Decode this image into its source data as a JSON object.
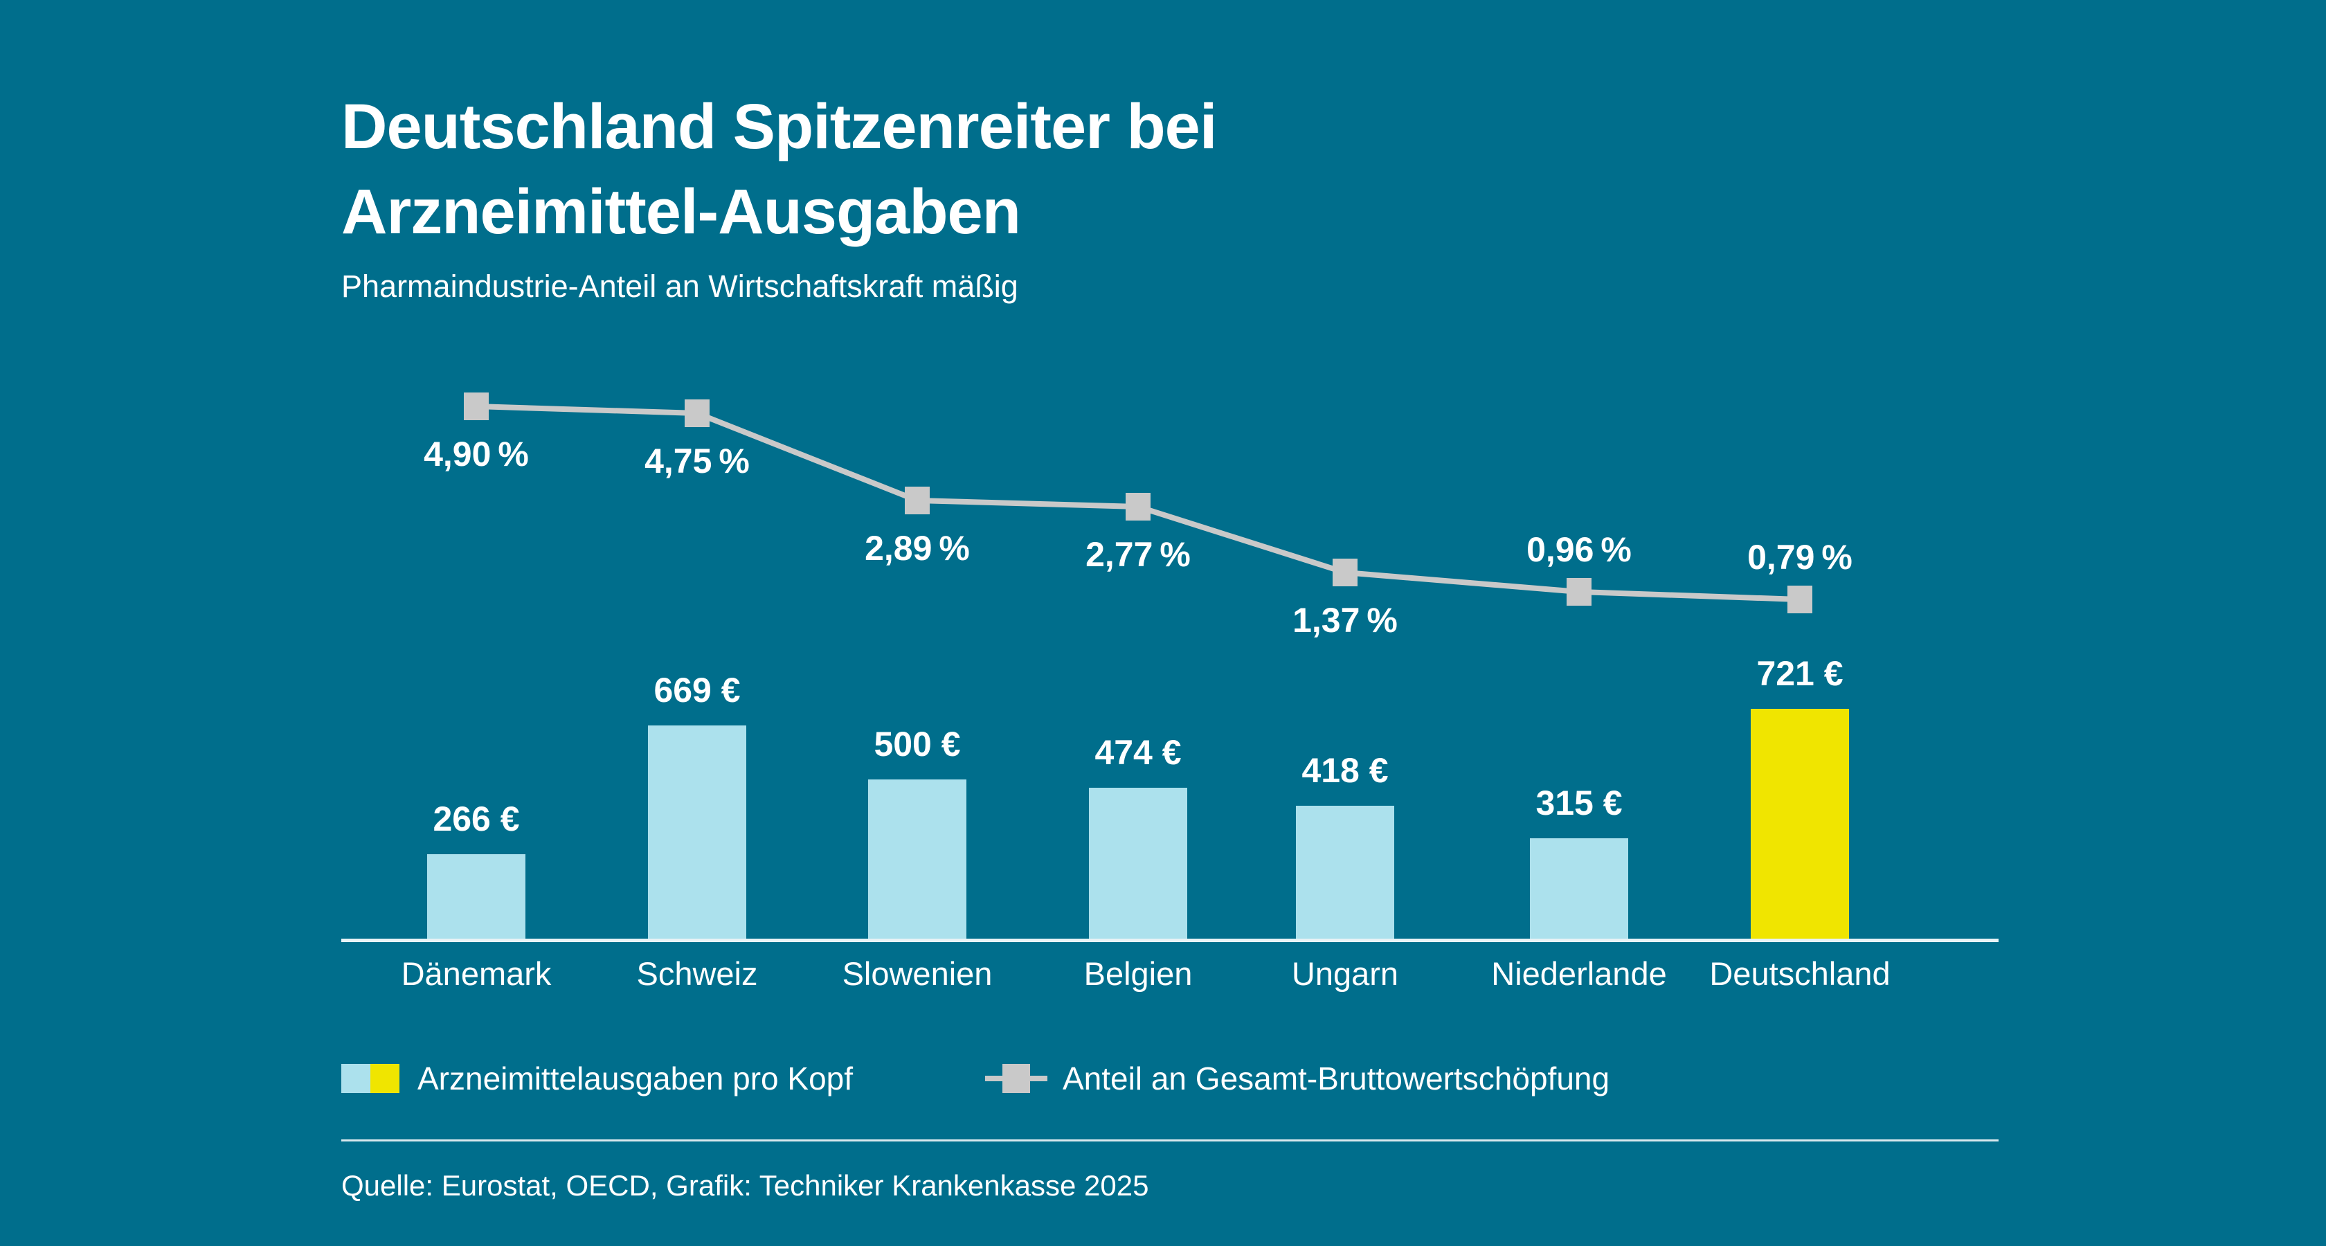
{
  "title": {
    "line1": "Deutschland Spitzenreiter bei",
    "line2": "Arzneimittel-Ausgaben"
  },
  "subtitle": "Pharmaindustrie-Anteil an Wirtschaftskraft mäßig",
  "source": "Quelle: Eurostat, OECD, Grafik: Techniker Krankenkasse 2025",
  "colors": {
    "background": "#006E8C",
    "bar": "#ACE1ED",
    "bar_highlight": "#F0E500",
    "line": "#C9C9C9",
    "text": "#FFFFFF",
    "axis": "#E8F3F6"
  },
  "legend": {
    "items": [
      {
        "label": "Arzneimittelausgaben pro Kopf",
        "swatch": [
          "#ACE1ED",
          "#F0E500"
        ]
      },
      {
        "label": "Anteil an Gesamt-Bruttowertschöpfung",
        "marker_color": "#C9C9C9"
      }
    ]
  },
  "chart_data": {
    "type": "combo",
    "categories": [
      "Dänemark",
      "Schweiz",
      "Slowenien",
      "Belgien",
      "Ungarn",
      "Niederlande",
      "Deutschland"
    ],
    "series": [
      {
        "name": "Arzneimittelausgaben pro Kopf",
        "type": "bar",
        "unit": "EUR",
        "values": [
          266,
          669,
          500,
          474,
          418,
          315,
          721
        ],
        "value_labels": [
          "266 €",
          "669 €",
          "500 €",
          "474 €",
          "418 €",
          "315 €",
          "721 €"
        ],
        "highlight_index": 6
      },
      {
        "name": "Anteil an Gesamt-Bruttowertschöpfung",
        "type": "line",
        "unit": "%",
        "values": [
          4.9,
          4.75,
          2.89,
          2.77,
          1.37,
          0.96,
          0.79
        ],
        "value_labels": [
          "4,90 %",
          "4,75 %",
          "2,89 %",
          "2,77 %",
          "1,37 %",
          "0,96 %",
          "0,79 %"
        ],
        "label_positions": [
          "below",
          "below",
          "below",
          "below",
          "below",
          "above",
          "above"
        ]
      }
    ],
    "legend_position": "bottom",
    "grid": false
  }
}
